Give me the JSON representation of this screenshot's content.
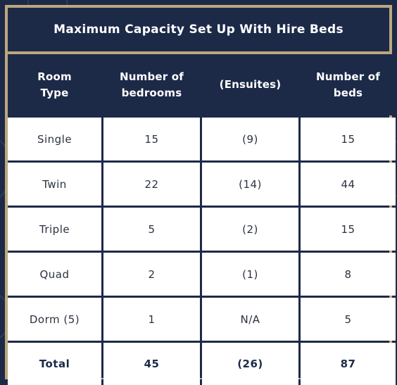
{
  "title": "Maximum Capacity Set Up With Hire Beds",
  "headers": [
    "Room\nType",
    "Number of\nbedrooms",
    "(Ensuites)",
    "Number of\nbeds"
  ],
  "rows": [
    [
      "Single",
      "15",
      "(9)",
      "15"
    ],
    [
      "Twin",
      "22",
      "(14)",
      "44"
    ],
    [
      "Triple",
      "5",
      "(2)",
      "15"
    ],
    [
      "Quad",
      "2",
      "(1)",
      "8"
    ],
    [
      "Dorm (5)",
      "1",
      "N/A",
      "5"
    ]
  ],
  "total": [
    "Total",
    "45",
    "(26)",
    "87"
  ],
  "colors": {
    "navy": "#1c2a48",
    "gold": "#bca77e",
    "white": "#ffffff"
  }
}
